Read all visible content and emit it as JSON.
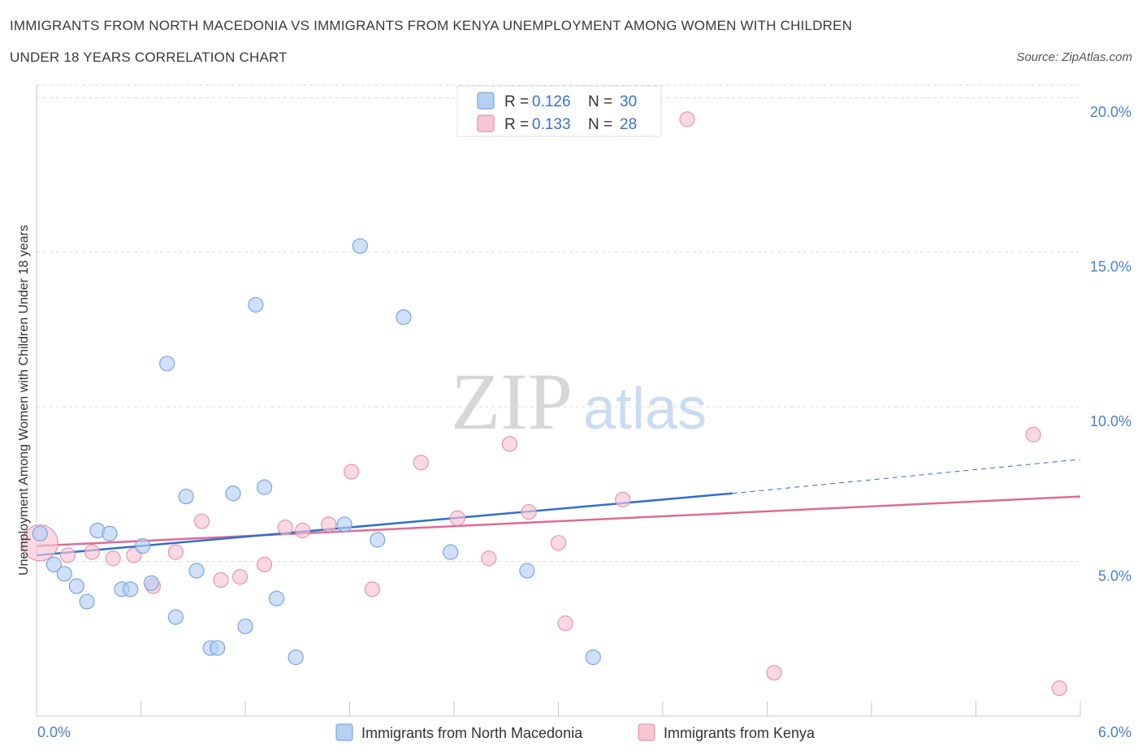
{
  "header": {
    "title_line1": "IMMIGRANTS FROM NORTH MACEDONIA VS IMMIGRANTS FROM KENYA UNEMPLOYMENT AMONG WOMEN WITH CHILDREN",
    "title_line2": "UNDER 18 YEARS CORRELATION CHART",
    "source": "Source: ZipAtlas.com"
  },
  "watermark": {
    "zip": "ZIP",
    "atlas": "atlas"
  },
  "legend": {
    "r_label": "R =",
    "n_label": "N =",
    "rows": [
      {
        "r": "0.126",
        "n": "30"
      },
      {
        "r": "0.133",
        "n": "28"
      }
    ]
  },
  "colors": {
    "blue_fill": "#b6d0f4",
    "blue_stroke": "#7aa6e0",
    "blue_line": "#2f6fcc",
    "pink_fill": "#f8c5d5",
    "pink_stroke": "#e595b0",
    "pink_line": "#e06a93",
    "grid": "#dcdcdc",
    "tick_label": "#4a7fc8"
  },
  "chart_data": {
    "type": "scatter",
    "title": "IMMIGRANTS FROM NORTH MACEDONIA VS IMMIGRANTS FROM KENYA UNEMPLOYMENT AMONG WOMEN WITH CHILDREN UNDER 18 YEARS CORRELATION CHART",
    "xlabel": "",
    "ylabel": "Unemployment Among Women with Children Under 18 years",
    "xlim": [
      0,
      6
    ],
    "ylim": [
      0.0,
      20.4
    ],
    "x_ticks": [
      "0.0%",
      "6.0%"
    ],
    "y_ticks": [
      {
        "value": 5,
        "label": "5.0%"
      },
      {
        "value": 10,
        "label": "10.0%"
      },
      {
        "value": 15,
        "label": "15.0%"
      },
      {
        "value": 20,
        "label": "20.0%"
      }
    ],
    "grid": true,
    "legend_placement": "top-center",
    "series": [
      {
        "name": "Immigrants from North Macedonia",
        "color": "#b6d0f4",
        "points": [
          [
            0.02,
            5.9
          ],
          [
            0.1,
            4.9
          ],
          [
            0.16,
            4.6
          ],
          [
            0.23,
            4.2
          ],
          [
            0.29,
            3.7
          ],
          [
            0.35,
            6.0
          ],
          [
            0.42,
            5.9
          ],
          [
            0.49,
            4.1
          ],
          [
            0.54,
            4.1
          ],
          [
            0.61,
            5.5
          ],
          [
            0.66,
            4.3
          ],
          [
            0.75,
            11.4
          ],
          [
            0.8,
            3.2
          ],
          [
            0.86,
            7.1
          ],
          [
            0.92,
            4.7
          ],
          [
            1.0,
            2.2
          ],
          [
            1.04,
            2.2
          ],
          [
            1.13,
            7.2
          ],
          [
            1.26,
            13.3
          ],
          [
            1.2,
            2.9
          ],
          [
            1.31,
            7.4
          ],
          [
            1.38,
            3.8
          ],
          [
            1.49,
            1.9
          ],
          [
            1.77,
            6.2
          ],
          [
            1.86,
            15.2
          ],
          [
            1.96,
            5.7
          ],
          [
            2.11,
            12.9
          ],
          [
            2.38,
            5.3
          ],
          [
            2.82,
            4.7
          ],
          [
            3.2,
            1.9
          ]
        ],
        "trend": {
          "x_start": 0.0,
          "y_start": 5.2,
          "x_end": 4.0,
          "y_end": 7.2,
          "x_dash_end": 6.0,
          "y_dash_end": 8.3
        }
      },
      {
        "name": "Immigrants from Kenya",
        "color": "#f8c5d5",
        "points": [
          [
            0.02,
            5.6
          ],
          [
            0.18,
            5.2
          ],
          [
            0.32,
            5.3
          ],
          [
            0.44,
            5.1
          ],
          [
            0.56,
            5.2
          ],
          [
            0.67,
            4.2
          ],
          [
            0.8,
            5.3
          ],
          [
            0.95,
            6.3
          ],
          [
            1.06,
            4.4
          ],
          [
            1.17,
            4.5
          ],
          [
            1.31,
            4.9
          ],
          [
            1.43,
            6.1
          ],
          [
            1.53,
            6.0
          ],
          [
            1.68,
            6.2
          ],
          [
            1.81,
            7.9
          ],
          [
            1.93,
            4.1
          ],
          [
            2.21,
            8.2
          ],
          [
            2.42,
            6.4
          ],
          [
            2.6,
            5.1
          ],
          [
            2.72,
            8.8
          ],
          [
            2.83,
            6.6
          ],
          [
            3.0,
            5.6
          ],
          [
            3.04,
            3.0
          ],
          [
            3.37,
            7.0
          ],
          [
            3.74,
            19.3
          ],
          [
            4.24,
            1.4
          ],
          [
            5.73,
            9.1
          ],
          [
            5.88,
            0.9
          ]
        ],
        "trend": {
          "x_start": 0.0,
          "y_start": 5.5,
          "x_end": 6.0,
          "y_end": 7.1
        }
      }
    ]
  }
}
